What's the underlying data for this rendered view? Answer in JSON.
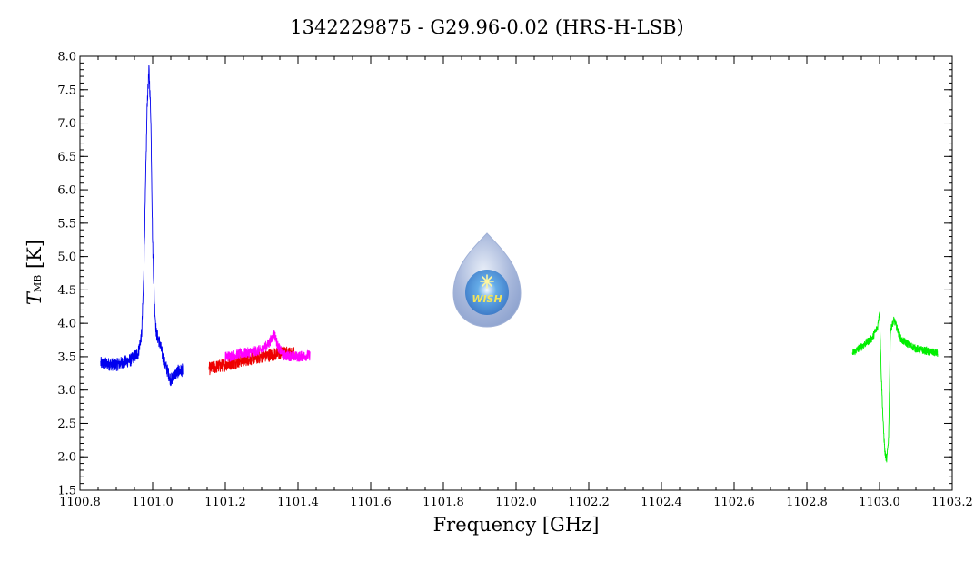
{
  "chart_data": {
    "type": "line",
    "title": "1342229875 - G29.96-0.02 (HRS-H-LSB)",
    "xlabel": "Frequency [GHz]",
    "ylabel": {
      "symbol": "T",
      "subscript": "MB",
      "unit": "[K]"
    },
    "xlim": [
      1100.8,
      1103.2
    ],
    "ylim": [
      1.5,
      8.0
    ],
    "x_ticks": [
      "1100.8",
      "1101.0",
      "1101.2",
      "1101.4",
      "1101.6",
      "1101.8",
      "1102.0",
      "1102.2",
      "1102.4",
      "1102.6",
      "1102.8",
      "1103.0",
      "1103.2"
    ],
    "y_ticks": [
      "1.5",
      "2.0",
      "2.5",
      "3.0",
      "3.5",
      "4.0",
      "4.5",
      "5.0",
      "5.5",
      "6.0",
      "6.5",
      "7.0",
      "7.5",
      "8.0"
    ],
    "grid": false,
    "logo_text": "WISH",
    "series": [
      {
        "color": "#0000ee",
        "noise": 0.1,
        "x": [
          1100.857,
          1100.9,
          1100.94,
          1100.96,
          1100.97,
          1100.975,
          1100.98,
          1100.985,
          1100.99,
          1100.995,
          1101.0,
          1101.005,
          1101.01,
          1101.02,
          1101.03,
          1101.04,
          1101.05,
          1101.06,
          1101.07,
          1101.083
        ],
        "y": [
          3.4,
          3.38,
          3.45,
          3.55,
          3.85,
          4.6,
          5.9,
          7.3,
          7.8,
          7.1,
          5.2,
          4.3,
          3.85,
          3.7,
          3.45,
          3.3,
          3.15,
          3.22,
          3.28,
          3.3
        ]
      },
      {
        "color": "#ee0000",
        "noise": 0.1,
        "x": [
          1101.155,
          1101.2,
          1101.25,
          1101.3,
          1101.35,
          1101.39
        ],
        "y": [
          3.32,
          3.38,
          3.45,
          3.5,
          3.55,
          3.55
        ]
      },
      {
        "color": "#ff00ff",
        "noise": 0.08,
        "x": [
          1101.2,
          1101.25,
          1101.3,
          1101.32,
          1101.335,
          1101.345,
          1101.36,
          1101.4,
          1101.433
        ],
        "y": [
          3.5,
          3.55,
          3.6,
          3.7,
          3.85,
          3.65,
          3.52,
          3.5,
          3.52
        ]
      },
      {
        "color": "#00ee00",
        "noise": 0.06,
        "x": [
          1102.925,
          1102.95,
          1102.98,
          1102.995,
          1103.0,
          1103.005,
          1103.01,
          1103.015,
          1103.02,
          1103.025,
          1103.03,
          1103.04,
          1103.06,
          1103.1,
          1103.16
        ],
        "y": [
          3.55,
          3.65,
          3.78,
          3.95,
          4.2,
          3.2,
          2.5,
          2.05,
          1.95,
          2.3,
          3.9,
          4.05,
          3.75,
          3.62,
          3.55
        ]
      }
    ]
  }
}
